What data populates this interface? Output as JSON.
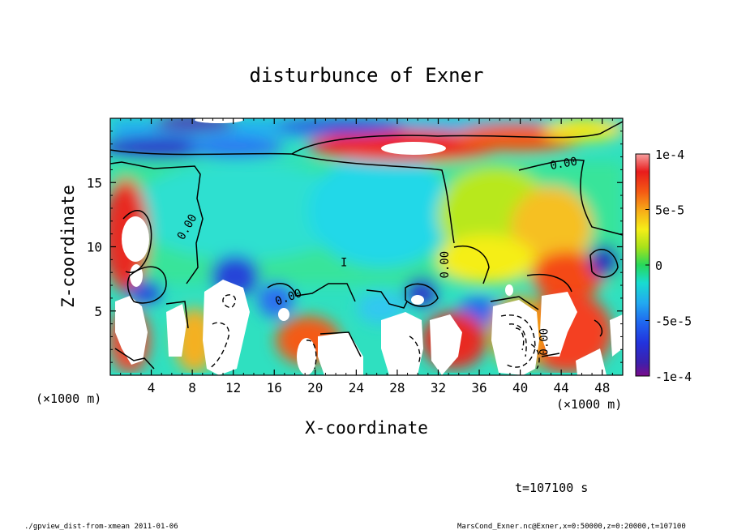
{
  "chart_data": {
    "type": "heatmap",
    "title": "disturbunce of Exner",
    "xlabel": "X-coordinate",
    "ylabel": "Z-coordinate",
    "x_unit_left": "(×1000 m)",
    "x_unit_right": "(×1000 m)",
    "xlim": [
      0,
      50
    ],
    "ylim": [
      0,
      20
    ],
    "x_ticks": [
      4,
      8,
      12,
      16,
      20,
      24,
      28,
      32,
      36,
      40,
      44,
      48
    ],
    "y_ticks": [
      5,
      10,
      15
    ],
    "colorbar": {
      "range": [
        -0.0001,
        0.0001
      ],
      "tick_values": [
        0.0001,
        5e-05,
        0,
        -5e-05,
        -0.0001
      ],
      "tick_labels": [
        "1e-4",
        "5e-5",
        "0",
        "-5e-5",
        "-1e-4"
      ]
    },
    "contour_labels": [
      {
        "text": "0.00",
        "x": 7.8,
        "z": 11.4,
        "angle": -60
      },
      {
        "text": "0.00",
        "x": 17.5,
        "z": 5.8,
        "angle": -20
      },
      {
        "text": "I",
        "x": 22.8,
        "z": 8.5,
        "angle": 0
      },
      {
        "text": "0.00",
        "x": 33.0,
        "z": 8.6,
        "angle": -90
      },
      {
        "text": "0.00",
        "x": 44.3,
        "z": 16.2,
        "angle": -10
      },
      {
        "text": "0.00",
        "x": 42.7,
        "z": 2.6,
        "angle": -90
      }
    ],
    "timestamp": "t=107100 s"
  },
  "footer": {
    "left": "./gpview_dist-from-xmean  2011-01-06",
    "right": "MarsCond_Exner.nc@Exner,x=0:50000,z=0:20000,t=107100"
  }
}
